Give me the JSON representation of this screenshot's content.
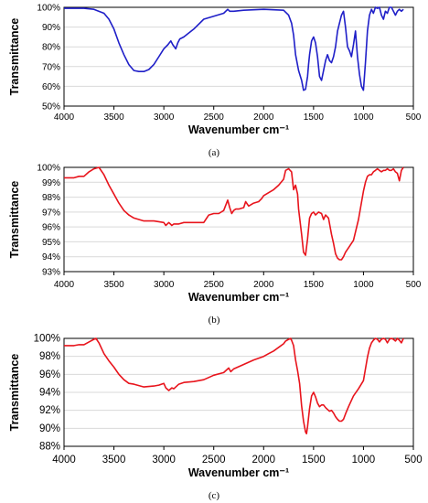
{
  "chart_data": [
    {
      "type": "line",
      "caption": "(a)",
      "xlabel": "Wavenumber cm⁻¹",
      "ylabel": "Transmittance",
      "xlim": [
        4000,
        500
      ],
      "x_reversed": true,
      "ylim": [
        50,
        100
      ],
      "xticks": [
        4000,
        3500,
        3000,
        2500,
        2000,
        1500,
        1000,
        500
      ],
      "xtick_labels": [
        "4000",
        "3500",
        "3000",
        "2500",
        "2000",
        "1500",
        "1000",
        "500"
      ],
      "yticks": [
        50,
        60,
        70,
        80,
        90,
        100
      ],
      "ytick_labels": [
        "50%",
        "60%",
        "70%",
        "80%",
        "90%",
        "100%"
      ],
      "grid": "horizontal",
      "series": [
        {
          "color": "#1f1fc8",
          "x": [
            4000,
            3800,
            3700,
            3600,
            3550,
            3500,
            3450,
            3400,
            3350,
            3300,
            3250,
            3200,
            3150,
            3100,
            3050,
            3000,
            2960,
            2930,
            2910,
            2880,
            2860,
            2840,
            2800,
            2700,
            2600,
            2400,
            2360,
            2340,
            2300,
            2200,
            2000,
            1800,
            1750,
            1720,
            1700,
            1680,
            1650,
            1620,
            1600,
            1580,
            1560,
            1550,
            1540,
            1520,
            1500,
            1480,
            1460,
            1440,
            1420,
            1400,
            1380,
            1360,
            1340,
            1320,
            1300,
            1280,
            1260,
            1240,
            1220,
            1200,
            1180,
            1160,
            1140,
            1120,
            1100,
            1080,
            1060,
            1040,
            1020,
            1000,
            980,
            960,
            940,
            920,
            900,
            880,
            860,
            840,
            820,
            800,
            780,
            760,
            740,
            720,
            700,
            680,
            660,
            640,
            620,
            600
          ],
          "y": [
            99.5,
            99.5,
            99,
            97,
            94,
            89,
            82,
            76,
            71,
            68,
            67.5,
            67.5,
            68.5,
            71,
            75,
            79,
            81,
            83,
            81,
            79,
            82,
            84,
            85,
            89,
            94,
            97,
            99,
            98,
            98,
            98.5,
            99,
            98.5,
            96,
            92,
            86,
            76,
            68,
            63,
            58,
            58.5,
            65,
            71,
            76,
            83,
            85,
            82,
            75,
            65,
            63,
            68,
            73,
            76,
            73,
            72,
            75,
            80,
            88,
            92,
            96,
            98,
            90,
            80,
            78,
            75,
            81,
            88,
            75,
            66,
            60,
            58,
            72,
            88,
            96,
            99,
            97,
            100,
            99.5,
            100,
            96,
            94,
            98,
            97,
            100,
            100,
            98,
            96,
            98,
            99,
            98,
            99
          ]
        }
      ]
    },
    {
      "type": "line",
      "caption": "(b)",
      "xlabel": "Wavenumber cm⁻¹",
      "ylabel": "Transmittance",
      "xlim": [
        4000,
        500
      ],
      "x_reversed": true,
      "ylim": [
        93,
        100
      ],
      "xticks": [
        4000,
        3500,
        3000,
        2500,
        2000,
        1500,
        1000,
        500
      ],
      "xtick_labels": [
        "4000",
        "3500",
        "3000",
        "2500",
        "2000",
        "1500",
        "1000",
        "500"
      ],
      "yticks": [
        93,
        94,
        95,
        96,
        97,
        98,
        99,
        100
      ],
      "ytick_labels": [
        "93%",
        "94%",
        "95%",
        "96%",
        "97%",
        "98%",
        "99%",
        "100%"
      ],
      "grid": "horizontal",
      "series": [
        {
          "color": "#e8141c",
          "x": [
            4000,
            3900,
            3850,
            3800,
            3750,
            3700,
            3650,
            3600,
            3550,
            3500,
            3450,
            3400,
            3350,
            3300,
            3200,
            3100,
            3000,
            2980,
            2950,
            2920,
            2900,
            2850,
            2800,
            2700,
            2600,
            2580,
            2550,
            2500,
            2450,
            2400,
            2360,
            2340,
            2320,
            2300,
            2280,
            2250,
            2200,
            2180,
            2150,
            2100,
            2050,
            2020,
            2000,
            1950,
            1900,
            1850,
            1800,
            1780,
            1750,
            1720,
            1700,
            1680,
            1660,
            1650,
            1620,
            1600,
            1580,
            1560,
            1540,
            1520,
            1500,
            1480,
            1450,
            1420,
            1400,
            1380,
            1350,
            1320,
            1300,
            1280,
            1260,
            1240,
            1220,
            1200,
            1180,
            1150,
            1100,
            1050,
            1000,
            980,
            960,
            940,
            920,
            900,
            880,
            860,
            840,
            820,
            800,
            780,
            760,
            740,
            720,
            700,
            680,
            660,
            640,
            620,
            600
          ],
          "y": [
            99.3,
            99.3,
            99.4,
            99.4,
            99.7,
            99.9,
            100,
            99.5,
            98.8,
            98.2,
            97.6,
            97.1,
            96.8,
            96.6,
            96.4,
            96.4,
            96.3,
            96.1,
            96.3,
            96.1,
            96.2,
            96.2,
            96.3,
            96.3,
            96.3,
            96.5,
            96.8,
            96.9,
            96.9,
            97.1,
            97.8,
            97.3,
            96.9,
            97.1,
            97.2,
            97.2,
            97.3,
            97.7,
            97.4,
            97.6,
            97.7,
            97.9,
            98.1,
            98.3,
            98.5,
            98.8,
            99.2,
            99.8,
            99.9,
            99.7,
            98.5,
            98.8,
            98.2,
            97.2,
            95.5,
            94.3,
            94.1,
            95.2,
            96.6,
            96.9,
            97.0,
            96.8,
            97.0,
            96.9,
            96.5,
            96.8,
            96.6,
            95.5,
            94.9,
            94.2,
            93.9,
            93.8,
            93.8,
            94.0,
            94.3,
            94.6,
            95.1,
            96.5,
            98.4,
            99.0,
            99.4,
            99.5,
            99.5,
            99.7,
            99.8,
            99.9,
            99.8,
            99.7,
            99.8,
            99.8,
            99.9,
            99.8,
            99.8,
            99.9,
            99.7,
            99.6,
            99.1,
            99.8,
            100
          ]
        }
      ]
    },
    {
      "type": "line",
      "caption": "(c)",
      "xlabel": "Wavenumber cm⁻¹",
      "ylabel": "Transmittance",
      "xlim": [
        4000,
        500
      ],
      "x_reversed": true,
      "ylim": [
        88,
        100
      ],
      "xticks": [
        4000,
        3500,
        3000,
        2500,
        2000,
        1500,
        1000,
        500
      ],
      "xtick_labels": [
        "4000",
        "3500",
        "3000",
        "2500",
        "2000",
        "1500",
        "1000",
        "500"
      ],
      "yticks": [
        88,
        90,
        92,
        94,
        96,
        98,
        100
      ],
      "ytick_labels": [
        "88%",
        "90%",
        "92%",
        "94%",
        "96%",
        "98%",
        "100%"
      ],
      "grid": "horizontal",
      "series": [
        {
          "color": "#e8141c",
          "x": [
            4000,
            3900,
            3850,
            3800,
            3750,
            3700,
            3680,
            3650,
            3600,
            3550,
            3500,
            3450,
            3400,
            3350,
            3300,
            3200,
            3100,
            3050,
            3000,
            2980,
            2950,
            2920,
            2900,
            2850,
            2800,
            2700,
            2600,
            2500,
            2400,
            2350,
            2330,
            2300,
            2200,
            2100,
            2000,
            1950,
            1900,
            1850,
            1800,
            1780,
            1750,
            1730,
            1720,
            1700,
            1680,
            1660,
            1640,
            1620,
            1600,
            1580,
            1570,
            1560,
            1540,
            1520,
            1500,
            1480,
            1460,
            1440,
            1420,
            1400,
            1380,
            1360,
            1340,
            1320,
            1300,
            1280,
            1260,
            1240,
            1220,
            1200,
            1180,
            1150,
            1100,
            1050,
            1000,
            980,
            960,
            940,
            920,
            900,
            880,
            860,
            840,
            820,
            800,
            780,
            760,
            740,
            720,
            700,
            680,
            660,
            640,
            620,
            600
          ],
          "y": [
            99.2,
            99.2,
            99.3,
            99.3,
            99.6,
            99.9,
            100,
            99.5,
            98.3,
            97.5,
            96.8,
            96.0,
            95.4,
            95.0,
            94.9,
            94.6,
            94.7,
            94.8,
            95.0,
            94.5,
            94.2,
            94.5,
            94.4,
            94.9,
            95.1,
            95.2,
            95.4,
            95.9,
            96.2,
            96.7,
            96.3,
            96.6,
            97.1,
            97.6,
            98.0,
            98.3,
            98.6,
            99.0,
            99.4,
            99.7,
            99.9,
            100,
            99.8,
            99.2,
            97.6,
            96.4,
            95.0,
            92.5,
            90.8,
            89.6,
            89.4,
            90.2,
            92.2,
            93.6,
            94.0,
            93.5,
            92.8,
            92.4,
            92.6,
            92.6,
            92.3,
            92.1,
            91.9,
            92.0,
            91.7,
            91.3,
            91.0,
            90.8,
            90.8,
            91.0,
            91.6,
            92.4,
            93.6,
            94.4,
            95.3,
            96.6,
            97.9,
            98.9,
            99.5,
            99.8,
            100,
            99.9,
            99.6,
            99.9,
            100,
            99.9,
            99.5,
            99.9,
            100,
            99.9,
            99.7,
            100,
            99.8,
            99.5,
            100
          ]
        }
      ]
    }
  ]
}
